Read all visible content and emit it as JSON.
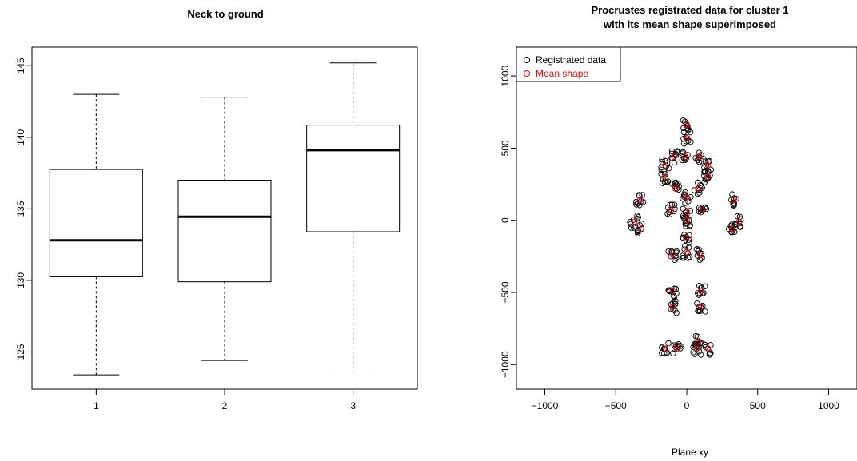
{
  "chart_data": [
    {
      "type": "box",
      "title": "Neck to ground",
      "xlabel": "",
      "ylabel": "",
      "categories": [
        "1",
        "2",
        "3"
      ],
      "ylim": [
        122.4,
        146.3
      ],
      "yticks": [
        125,
        130,
        135,
        140,
        145
      ],
      "boxes": [
        {
          "min": 123.4,
          "q1": 130.25,
          "median": 132.8,
          "q3": 137.75,
          "max": 143.0
        },
        {
          "min": 124.4,
          "q1": 129.9,
          "median": 134.45,
          "q3": 137.0,
          "max": 142.8
        },
        {
          "min": 123.6,
          "q1": 133.4,
          "median": 139.1,
          "q3": 140.85,
          "max": 145.2
        }
      ],
      "grid": false
    },
    {
      "type": "scatter",
      "title": "Procrustes registrated data for cluster 1",
      "subtitle": "with its mean shape superimposed",
      "xlabel": "Plane xy",
      "ylabel": "",
      "xlim": [
        -1200,
        1200
      ],
      "ylim": [
        -1170,
        1200
      ],
      "xticks": [
        -1000,
        -500,
        0,
        500,
        1000
      ],
      "yticks": [
        -1000,
        -500,
        0,
        500,
        1000
      ],
      "grid": false,
      "legend": {
        "position": "top-left",
        "entries": [
          {
            "label": "Registrated data",
            "color": "#000000"
          },
          {
            "label": "Mean shape",
            "color": "#ff0000"
          }
        ]
      },
      "mean_shape": [
        {
          "x": 0,
          "y": 660
        },
        {
          "x": 0,
          "y": 570
        },
        {
          "x": -10,
          "y": 440
        },
        {
          "x": 90,
          "y": 440
        },
        {
          "x": -90,
          "y": 440
        },
        {
          "x": -150,
          "y": 380
        },
        {
          "x": 150,
          "y": 380
        },
        {
          "x": -150,
          "y": 300
        },
        {
          "x": 150,
          "y": 300
        },
        {
          "x": -80,
          "y": 220
        },
        {
          "x": 80,
          "y": 220
        },
        {
          "x": 0,
          "y": 160
        },
        {
          "x": 0,
          "y": 60
        },
        {
          "x": 0,
          "y": 0
        },
        {
          "x": -110,
          "y": 70
        },
        {
          "x": 110,
          "y": 70
        },
        {
          "x": -330,
          "y": 140
        },
        {
          "x": 330,
          "y": 140
        },
        {
          "x": -370,
          "y": -10
        },
        {
          "x": 370,
          "y": -10
        },
        {
          "x": -320,
          "y": -60
        },
        {
          "x": 320,
          "y": -60
        },
        {
          "x": 0,
          "y": -120
        },
        {
          "x": -100,
          "y": -240
        },
        {
          "x": 100,
          "y": -240
        },
        {
          "x": 0,
          "y": -220
        },
        {
          "x": -100,
          "y": -490
        },
        {
          "x": 100,
          "y": -490
        },
        {
          "x": -100,
          "y": -600
        },
        {
          "x": 100,
          "y": -600
        },
        {
          "x": -150,
          "y": -890
        },
        {
          "x": -70,
          "y": -890
        },
        {
          "x": 70,
          "y": -890
        },
        {
          "x": 150,
          "y": -890
        },
        {
          "x": 80,
          "y": -840
        }
      ],
      "registrated_spread": 30
    }
  ],
  "colors": {
    "data": "#000000",
    "mean": "#ff0000"
  }
}
